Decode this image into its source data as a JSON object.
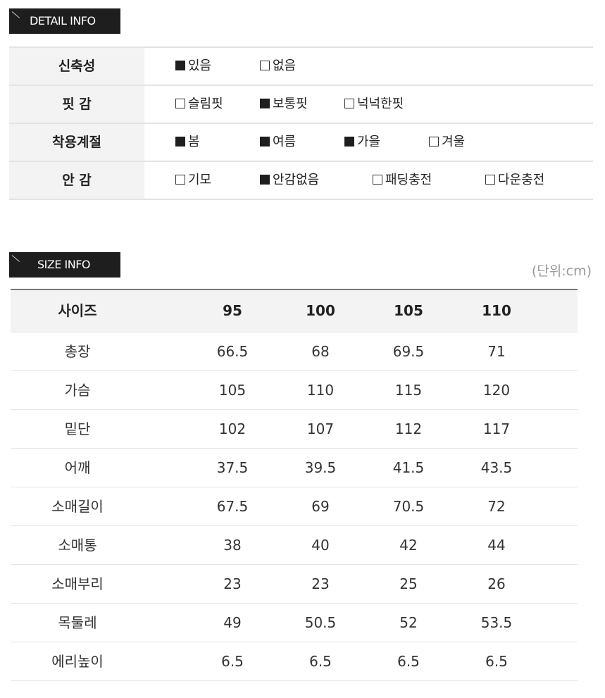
{
  "detail": {
    "title": "DETAIL INFO",
    "rows": [
      {
        "label": "신축성",
        "options": [
          {
            "text": "있음",
            "checked": true
          },
          {
            "text": "없음",
            "checked": false
          }
        ]
      },
      {
        "label": "핏 감",
        "options": [
          {
            "text": "슬림핏",
            "checked": false
          },
          {
            "text": "보통핏",
            "checked": true
          },
          {
            "text": "넉넉한핏",
            "checked": false
          }
        ]
      },
      {
        "label": "착용계절",
        "options": [
          {
            "text": "봄",
            "checked": true
          },
          {
            "text": "여름",
            "checked": true
          },
          {
            "text": "가을",
            "checked": true
          },
          {
            "text": "겨울",
            "checked": false
          }
        ]
      },
      {
        "label": "안 감",
        "options": [
          {
            "text": "기모",
            "checked": false
          },
          {
            "text": "안감없음",
            "checked": true
          },
          {
            "text": "패딩충전",
            "checked": false
          },
          {
            "text": "다운충전",
            "checked": false
          }
        ]
      }
    ]
  },
  "size": {
    "title": "SIZE INFO",
    "unit": "(단위:cm)",
    "headers": [
      "사이즈",
      "95",
      "100",
      "105",
      "110"
    ],
    "rows": [
      [
        "총장",
        "66.5",
        "68",
        "69.5",
        "71"
      ],
      [
        "가슴",
        "105",
        "110",
        "115",
        "120"
      ],
      [
        "밑단",
        "102",
        "107",
        "112",
        "117"
      ],
      [
        "어깨",
        "37.5",
        "39.5",
        "41.5",
        "43.5"
      ],
      [
        "소매길이",
        "67.5",
        "69",
        "70.5",
        "72"
      ],
      [
        "소매통",
        "38",
        "40",
        "42",
        "44"
      ],
      [
        "소매부리",
        "23",
        "23",
        "25",
        "26"
      ],
      [
        "목둘레",
        "49",
        "50.5",
        "52",
        "53.5"
      ],
      [
        "에리높이",
        "6.5",
        "6.5",
        "6.5",
        "6.5"
      ]
    ]
  }
}
